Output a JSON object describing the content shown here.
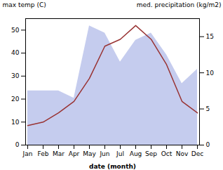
{
  "chart_data": {
    "type": "line",
    "categories": [
      "Jan",
      "Feb",
      "Mar",
      "Apr",
      "May",
      "Jun",
      "Jul",
      "Aug",
      "Sep",
      "Oct",
      "Nov",
      "Dec"
    ],
    "xlabel": "date (month)",
    "ylabel": "max temp (C)",
    "y2label": "med. precipitation (kg/m2)",
    "ylim": [
      0,
      55
    ],
    "yticks": [
      0,
      10,
      20,
      30,
      40,
      50
    ],
    "y2lim": [
      0,
      17.5
    ],
    "y2ticks": [
      0,
      5,
      10,
      15
    ],
    "grid": false,
    "series": [
      {
        "type": "area",
        "axis": "y2",
        "color": "#c5ccee",
        "values": [
          7.5,
          7.5,
          7.5,
          6.5,
          16.5,
          15.5,
          11.5,
          14.5,
          15.5,
          12.5,
          8.5,
          10.5
        ]
      },
      {
        "type": "line",
        "color": "#993333",
        "values": [
          8.5,
          10,
          14,
          19,
          29,
          43,
          46,
          52,
          46,
          35,
          19,
          14
        ]
      }
    ]
  }
}
